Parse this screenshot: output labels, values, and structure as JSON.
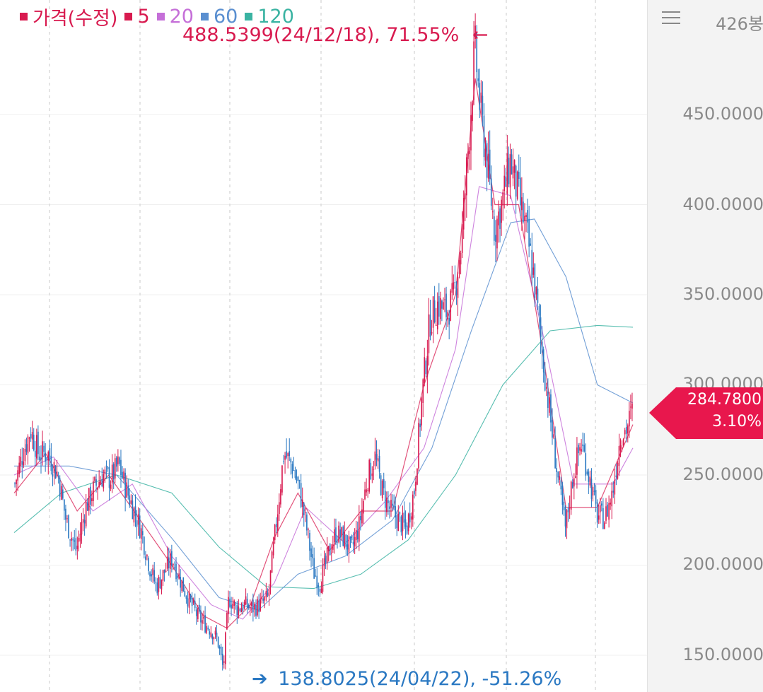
{
  "legend": [
    {
      "label": "가격(수정)",
      "color": "#d81a4f"
    },
    {
      "label": "5",
      "color": "#d81a4f"
    },
    {
      "label": "20",
      "color": "#c56fd8"
    },
    {
      "label": "60",
      "color": "#5a8fd0"
    },
    {
      "label": "120",
      "color": "#3ab3a2"
    }
  ],
  "toolbar": {
    "candle_count": "426봉"
  },
  "current_price": {
    "value": "284.7800",
    "change": "3.10%",
    "color": "#e8174d"
  },
  "annotations": {
    "high": {
      "text": "488.5399(24/12/18), 71.55%",
      "arrow": "←"
    },
    "low": {
      "arrow": "➔",
      "text": "138.8025(24/04/22), -51.26%"
    }
  },
  "chart_data": {
    "type": "candlestick",
    "candle_count": 426,
    "y_ticks": [
      "150.0000",
      "200.0000",
      "250.0000",
      "300.0000",
      "350.0000",
      "400.0000",
      "450.0000"
    ],
    "ylim": [
      140,
      490
    ],
    "up_color": "#d81a4f",
    "down_color": "#2a78c2",
    "moving_averages": [
      {
        "name": "5",
        "color": "#d81a4f"
      },
      {
        "name": "20",
        "color": "#c56fd8"
      },
      {
        "name": "60",
        "color": "#5a8fd0"
      },
      {
        "name": "120",
        "color": "#3ab3a2"
      }
    ],
    "close_path": [
      [
        0,
        245
      ],
      [
        10,
        262
      ],
      [
        20,
        275
      ],
      [
        30,
        262
      ],
      [
        42,
        262
      ],
      [
        55,
        250
      ],
      [
        65,
        225
      ],
      [
        78,
        208
      ],
      [
        90,
        232
      ],
      [
        100,
        242
      ],
      [
        112,
        250
      ],
      [
        122,
        248
      ],
      [
        132,
        256
      ],
      [
        140,
        244
      ],
      [
        150,
        232
      ],
      [
        160,
        220
      ],
      [
        172,
        198
      ],
      [
        180,
        188
      ],
      [
        190,
        196
      ],
      [
        200,
        204
      ],
      [
        212,
        190
      ],
      [
        222,
        180
      ],
      [
        232,
        172
      ],
      [
        240,
        168
      ],
      [
        250,
        164
      ],
      [
        258,
        158
      ],
      [
        265,
        142
      ],
      [
        272,
        182
      ],
      [
        282,
        176
      ],
      [
        292,
        178
      ],
      [
        302,
        176
      ],
      [
        312,
        178
      ],
      [
        322,
        182
      ],
      [
        332,
        222
      ],
      [
        342,
        262
      ],
      [
        352,
        256
      ],
      [
        362,
        242
      ],
      [
        372,
        218
      ],
      [
        380,
        196
      ],
      [
        388,
        190
      ],
      [
        398,
        205
      ],
      [
        408,
        218
      ],
      [
        418,
        215
      ],
      [
        428,
        208
      ],
      [
        438,
        222
      ],
      [
        448,
        248
      ],
      [
        458,
        260
      ],
      [
        468,
        240
      ],
      [
        478,
        230
      ],
      [
        488,
        225
      ],
      [
        498,
        220
      ],
      [
        508,
        242
      ],
      [
        518,
        295
      ],
      [
        528,
        336
      ],
      [
        538,
        345
      ],
      [
        548,
        340
      ],
      [
        558,
        348
      ],
      [
        568,
        380
      ],
      [
        578,
        440
      ],
      [
        585,
        488
      ],
      [
        592,
        452
      ],
      [
        600,
        425
      ],
      [
        610,
        386
      ],
      [
        620,
        402
      ],
      [
        630,
        425
      ],
      [
        640,
        405
      ],
      [
        650,
        386
      ],
      [
        660,
        360
      ],
      [
        670,
        320
      ],
      [
        680,
        285
      ],
      [
        690,
        250
      ],
      [
        700,
        220
      ],
      [
        710,
        250
      ],
      [
        720,
        268
      ],
      [
        730,
        250
      ],
      [
        740,
        228
      ],
      [
        750,
        226
      ],
      [
        760,
        240
      ],
      [
        770,
        272
      ],
      [
        778,
        276
      ],
      [
        785,
        285
      ]
    ],
    "ma_paths": {
      "5": [
        [
          0,
          240
        ],
        [
          40,
          262
        ],
        [
          80,
          230
        ],
        [
          120,
          250
        ],
        [
          160,
          225
        ],
        [
          200,
          200
        ],
        [
          240,
          172
        ],
        [
          270,
          165
        ],
        [
          300,
          178
        ],
        [
          330,
          215
        ],
        [
          360,
          240
        ],
        [
          400,
          208
        ],
        [
          440,
          230
        ],
        [
          480,
          230
        ],
        [
          520,
          300
        ],
        [
          560,
          350
        ],
        [
          585,
          470
        ],
        [
          610,
          400
        ],
        [
          640,
          400
        ],
        [
          670,
          320
        ],
        [
          700,
          232
        ],
        [
          740,
          232
        ],
        [
          785,
          278
        ]
      ],
      "20": [
        [
          0,
          250
        ],
        [
          50,
          260
        ],
        [
          100,
          230
        ],
        [
          150,
          245
        ],
        [
          200,
          205
        ],
        [
          250,
          178
        ],
        [
          290,
          170
        ],
        [
          330,
          190
        ],
        [
          370,
          232
        ],
        [
          420,
          212
        ],
        [
          470,
          235
        ],
        [
          520,
          265
        ],
        [
          560,
          320
        ],
        [
          590,
          410
        ],
        [
          630,
          405
        ],
        [
          670,
          330
        ],
        [
          710,
          245
        ],
        [
          760,
          245
        ],
        [
          785,
          265
        ]
      ],
      "60": [
        [
          0,
          255
        ],
        [
          70,
          255
        ],
        [
          130,
          250
        ],
        [
          200,
          215
        ],
        [
          260,
          182
        ],
        [
          310,
          175
        ],
        [
          360,
          195
        ],
        [
          420,
          205
        ],
        [
          480,
          225
        ],
        [
          530,
          265
        ],
        [
          580,
          330
        ],
        [
          630,
          390
        ],
        [
          660,
          392
        ],
        [
          700,
          360
        ],
        [
          740,
          300
        ],
        [
          785,
          290
        ]
      ],
      "120": [
        [
          0,
          218
        ],
        [
          60,
          240
        ],
        [
          130,
          250
        ],
        [
          200,
          240
        ],
        [
          260,
          210
        ],
        [
          320,
          188
        ],
        [
          380,
          187
        ],
        [
          440,
          195
        ],
        [
          500,
          214
        ],
        [
          560,
          250
        ],
        [
          620,
          300
        ],
        [
          680,
          330
        ],
        [
          740,
          333
        ],
        [
          785,
          332
        ]
      ]
    }
  }
}
